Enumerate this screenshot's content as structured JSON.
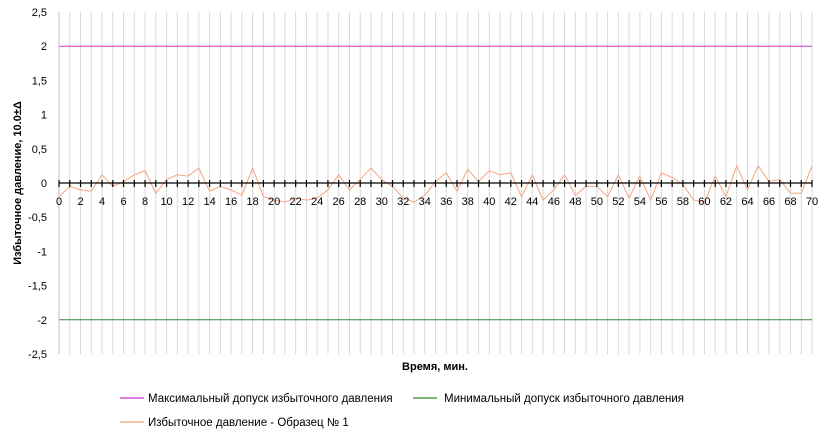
{
  "chart_data": {
    "type": "line",
    "title": "",
    "xlabel": "Время, мин.",
    "ylabel": "Избыточное давление, 10.0±Δ",
    "xlim": [
      0,
      70
    ],
    "ylim": [
      -2.5,
      2.5
    ],
    "x_ticks": [
      0,
      2,
      4,
      6,
      8,
      10,
      12,
      14,
      16,
      18,
      20,
      22,
      24,
      26,
      28,
      30,
      32,
      34,
      36,
      38,
      40,
      42,
      44,
      46,
      48,
      50,
      52,
      54,
      56,
      58,
      60,
      62,
      64,
      66,
      68,
      70
    ],
    "x_tick_labels": [
      "0",
      "2",
      "4",
      "6",
      "8",
      "10",
      "12",
      "14",
      "16",
      "18",
      "20",
      "22",
      "24",
      "26",
      "28",
      "30",
      "32",
      "34",
      "36",
      "38",
      "40",
      "42",
      "44",
      "46",
      "48",
      "50",
      "52",
      "54",
      "56",
      "58",
      "60",
      "62",
      "64",
      "66",
      "68",
      "70"
    ],
    "y_ticks": [
      2.5,
      2,
      1.5,
      1,
      0.5,
      0,
      -0.5,
      -1,
      -1.5,
      -2,
      -2.5
    ],
    "y_tick_labels": [
      "2,5",
      "2",
      "1,5",
      "1",
      "0,5",
      "0",
      "-0,5",
      "-1",
      "-1,5",
      "-2",
      "-2,5"
    ],
    "grid": "vertical",
    "legend_position": "bottom",
    "series": [
      {
        "name": "Максимальный допуск избыточного давления",
        "color": "#cc33cc",
        "x": [
          0,
          70
        ],
        "y": [
          2,
          2
        ]
      },
      {
        "name": "Минимальный допуск избыточного давления",
        "color": "#338833",
        "x": [
          0,
          70
        ],
        "y": [
          -2,
          -2
        ]
      },
      {
        "name": "Избыточное давление - Образец № 1",
        "color": "#f4a582",
        "x": [
          0,
          1,
          2,
          3,
          4,
          5,
          6,
          7,
          8,
          9,
          10,
          11,
          12,
          13,
          14,
          15,
          16,
          17,
          18,
          19,
          20,
          21,
          22,
          23,
          24,
          25,
          26,
          27,
          28,
          29,
          30,
          31,
          32,
          33,
          34,
          35,
          36,
          37,
          38,
          39,
          40,
          41,
          42,
          43,
          44,
          45,
          46,
          47,
          48,
          49,
          50,
          51,
          52,
          53,
          54,
          55,
          56,
          57,
          58,
          59,
          60,
          61,
          62,
          63,
          64,
          65,
          66,
          67,
          68,
          69,
          70
        ],
        "y": [
          -0.2,
          -0.05,
          -0.1,
          -0.12,
          0.12,
          -0.05,
          0.02,
          0.12,
          0.18,
          -0.15,
          0.05,
          0.12,
          0.1,
          0.22,
          -0.12,
          -0.05,
          -0.1,
          -0.18,
          0.22,
          -0.2,
          -0.25,
          -0.28,
          -0.22,
          -0.25,
          -0.22,
          -0.1,
          0.12,
          -0.1,
          0.05,
          0.22,
          0.05,
          -0.05,
          -0.22,
          -0.28,
          -0.18,
          0.02,
          0.15,
          -0.12,
          0.2,
          0.02,
          0.18,
          0.12,
          0.15,
          -0.2,
          0.12,
          -0.25,
          -0.1,
          0.12,
          -0.18,
          -0.05,
          -0.05,
          -0.2,
          0.12,
          -0.22,
          0.1,
          -0.25,
          0.15,
          0.08,
          -0.02,
          -0.25,
          -0.28,
          0.1,
          -0.2,
          0.25,
          -0.1,
          0.25,
          0.02,
          0.05,
          -0.15,
          -0.15,
          0.25
        ]
      }
    ]
  }
}
